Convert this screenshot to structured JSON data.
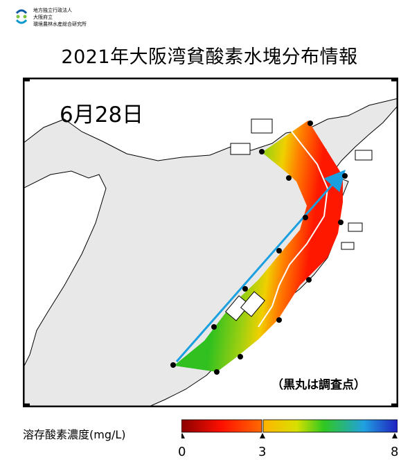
{
  "header": {
    "org_lines": [
      "地方独立行政法人",
      "大阪府立",
      "環境農林水産総合研究所"
    ]
  },
  "title": "2021年大阪湾貧酸素水塊分布情報",
  "map": {
    "date": "6月28日",
    "note": "（黒丸は調査点）"
  },
  "legend": {
    "label": "溶存酸素濃度(mg/L)",
    "ticks": [
      "0",
      "3",
      "8"
    ]
  },
  "colors": {
    "land": "#ffffff",
    "sea": "#e8e8e8",
    "hypoxic": "#ff2000",
    "oxic": "#00c800",
    "arrow": "#1aa0e0"
  }
}
